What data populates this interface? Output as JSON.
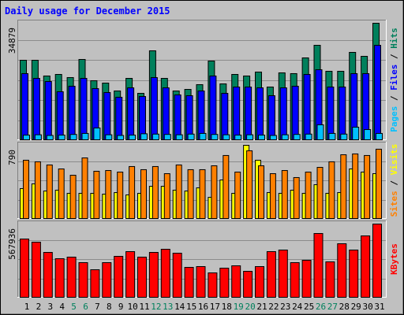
{
  "chart_data": [
    {
      "type": "bar",
      "title": "Daily usage for December 2015",
      "ylim": [
        0,
        34879
      ],
      "yticks": [
        34879
      ],
      "legend_separator": " / ",
      "series": [
        {
          "name": "Hits",
          "color": "#00805C",
          "values": [
            23800,
            23800,
            19090,
            19560,
            18620,
            24040,
            17680,
            16970,
            14610,
            18380,
            13900,
            26630,
            18380,
            14610,
            15080,
            16500,
            23570,
            16730,
            19560,
            19090,
            20270,
            15790,
            20030,
            19800,
            24510,
            28280,
            20500,
            20500,
            26160,
            24980,
            34879
          ]
        },
        {
          "name": "Files",
          "color": "#0000FF",
          "values": [
            19800,
            18380,
            17440,
            14380,
            16030,
            18380,
            15320,
            14140,
            12730,
            15550,
            12960,
            18620,
            15550,
            13430,
            13200,
            14610,
            19090,
            13900,
            15790,
            15790,
            15550,
            13200,
            15550,
            16030,
            19560,
            20970,
            15790,
            15790,
            19800,
            19800,
            28280
          ]
        },
        {
          "name": "Pages",
          "color": "#00C0FF",
          "values": [
            1400,
            1500,
            1300,
            1400,
            1600,
            1900,
            3530,
            1500,
            1300,
            1400,
            1800,
            1700,
            1600,
            1500,
            1700,
            1900,
            1600,
            1500,
            1400,
            1500,
            1400,
            1300,
            1500,
            1600,
            1700,
            4480,
            1900,
            1700,
            3770,
            3060,
            1900
          ]
        }
      ]
    },
    {
      "type": "bar",
      "ylim": [
        0,
        790
      ],
      "yticks": [
        790
      ],
      "legend_separator": " / ",
      "series": [
        {
          "name": "Visits",
          "color": "#FFFF00",
          "values": [
            323,
            374,
            297,
            306,
            272,
            272,
            272,
            263,
            280,
            255,
            272,
            348,
            348,
            306,
            297,
            331,
            229,
            416,
            272,
            790,
            629,
            280,
            272,
            306,
            272,
            365,
            272,
            280,
            535,
            501,
            484
          ]
        },
        {
          "name": "Sites",
          "color": "#FF8000",
          "values": [
            629,
            612,
            578,
            535,
            467,
            654,
            510,
            518,
            501,
            561,
            527,
            561,
            484,
            578,
            527,
            527,
            569,
            680,
            501,
            731,
            569,
            484,
            518,
            442,
            501,
            552,
            612,
            688,
            697,
            680,
            748
          ]
        }
      ]
    },
    {
      "type": "bar",
      "ylim": [
        0,
        567936
      ],
      "yticks": [
        567936
      ],
      "categories": [
        "1",
        "2",
        "3",
        "4",
        "5",
        "6",
        "7",
        "8",
        "9",
        "10",
        "11",
        "12",
        "13",
        "14",
        "15",
        "16",
        "17",
        "18",
        "19",
        "20",
        "21",
        "22",
        "23",
        "24",
        "25",
        "26",
        "27",
        "28",
        "29",
        "30",
        "31"
      ],
      "category_colors": [
        "#000000",
        "#000000",
        "#000000",
        "#000000",
        "#00805C",
        "#00805C",
        "#000000",
        "#000000",
        "#000000",
        "#000000",
        "#000000",
        "#00805C",
        "#00805C",
        "#000000",
        "#000000",
        "#000000",
        "#000000",
        "#000000",
        "#00805C",
        "#00805C",
        "#000000",
        "#000000",
        "#000000",
        "#000000",
        "#000000",
        "#00805C",
        "#00805C",
        "#000000",
        "#000000",
        "#000000",
        "#000000"
      ],
      "series": [
        {
          "name": "KBytes",
          "color": "#FF0000",
          "values": [
            451900,
            427480,
            348090,
            299240,
            311450,
            268700,
            213740,
            268700,
            317560,
            354200,
            311450,
            348090,
            372520,
            341980,
            232060,
            238170,
            189310,
            225950,
            244270,
            201530,
            238170,
            354200,
            366410,
            268700,
            287020,
            494650,
            274810,
            415270,
            366410,
            476080,
            567936
          ]
        }
      ]
    }
  ]
}
